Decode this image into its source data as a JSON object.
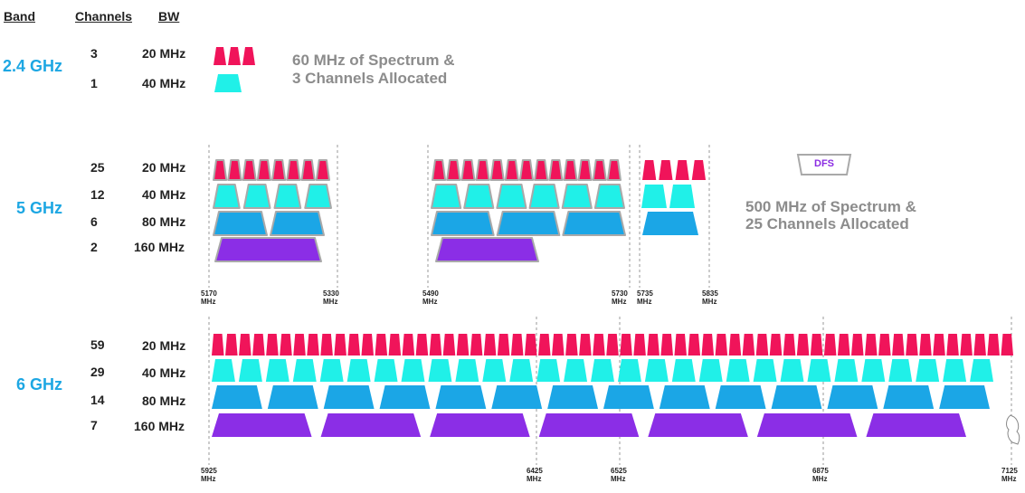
{
  "headers": {
    "band": "Band",
    "channels": "Channels",
    "bw": "BW"
  },
  "colors": {
    "w20": "#f0145a",
    "w40": "#20f0e8",
    "w80": "#1ba6e6",
    "w160": "#8b2ee6",
    "outline": "#a9a9a9",
    "band_text": "#1da7e3",
    "dfs": "#8a2be2"
  },
  "bands": [
    {
      "name": "2.4 GHz",
      "rows": [
        {
          "channels": "3",
          "bw": "20 MHz"
        },
        {
          "channels": "1",
          "bw": "40 MHz"
        }
      ],
      "note": [
        "60 MHz of Spectrum &",
        "3 Channels Allocated"
      ]
    },
    {
      "name": "5 GHz",
      "rows": [
        {
          "channels": "25",
          "bw": "20 MHz"
        },
        {
          "channels": "12",
          "bw": "40 MHz"
        },
        {
          "channels": "6",
          "bw": "80 MHz"
        },
        {
          "channels": "2",
          "bw": "160 MHz"
        }
      ],
      "note": [
        "500 MHz of Spectrum &",
        "25 Channels Allocated"
      ],
      "dfs_label": "DFS",
      "freq_markers": [
        {
          "mhz": "5170",
          "unit": "MHz"
        },
        {
          "mhz": "5330",
          "unit": "MHz"
        },
        {
          "mhz": "5490",
          "unit": "MHz"
        },
        {
          "mhz": "5730",
          "unit": "MHz"
        },
        {
          "mhz": "5735",
          "unit": "MHz"
        },
        {
          "mhz": "5835",
          "unit": "MHz"
        }
      ]
    },
    {
      "name": "6 GHz",
      "rows": [
        {
          "channels": "59",
          "bw": "20 MHz"
        },
        {
          "channels": "29",
          "bw": "40 MHz"
        },
        {
          "channels": "14",
          "bw": "80 MHz"
        },
        {
          "channels": "7",
          "bw": "160 MHz"
        }
      ],
      "freq_markers": [
        {
          "mhz": "5925",
          "unit": "MHz"
        },
        {
          "mhz": "6425",
          "unit": "MHz"
        },
        {
          "mhz": "6525",
          "unit": "MHz"
        },
        {
          "mhz": "6875",
          "unit": "MHz"
        },
        {
          "mhz": "7125",
          "unit": "MHz"
        }
      ]
    }
  ]
}
